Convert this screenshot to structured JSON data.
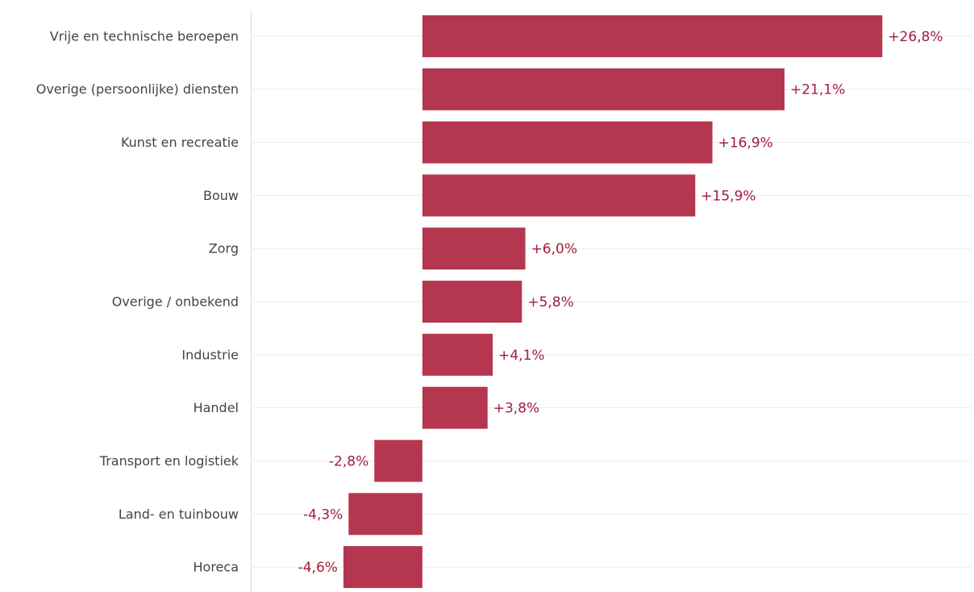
{
  "chart_data": {
    "type": "bar",
    "orientation": "horizontal",
    "categories": [
      "Vrije en technische beroepen",
      "Overige (persoonlijke) diensten",
      "Kunst en recreatie",
      "Bouw",
      "Zorg",
      "Overige / onbekend",
      "Industrie",
      "Handel",
      "Transport en logistiek",
      "Land- en tuinbouw",
      "Horeca"
    ],
    "values": [
      26.8,
      21.1,
      16.9,
      15.9,
      6.0,
      5.8,
      4.1,
      3.8,
      -2.8,
      -4.3,
      -4.6
    ],
    "value_labels": [
      "+26,8%",
      "+21,1%",
      "+16,9%",
      "+15,9%",
      "+6,0%",
      "+5,8%",
      "+4,1%",
      "+3,8%",
      "-2,8%",
      "-4,3%",
      "-4,6%"
    ],
    "color": "#b5374f",
    "label_color": "#a31d3c",
    "xlim": [
      -10,
      32
    ],
    "grid": true
  }
}
